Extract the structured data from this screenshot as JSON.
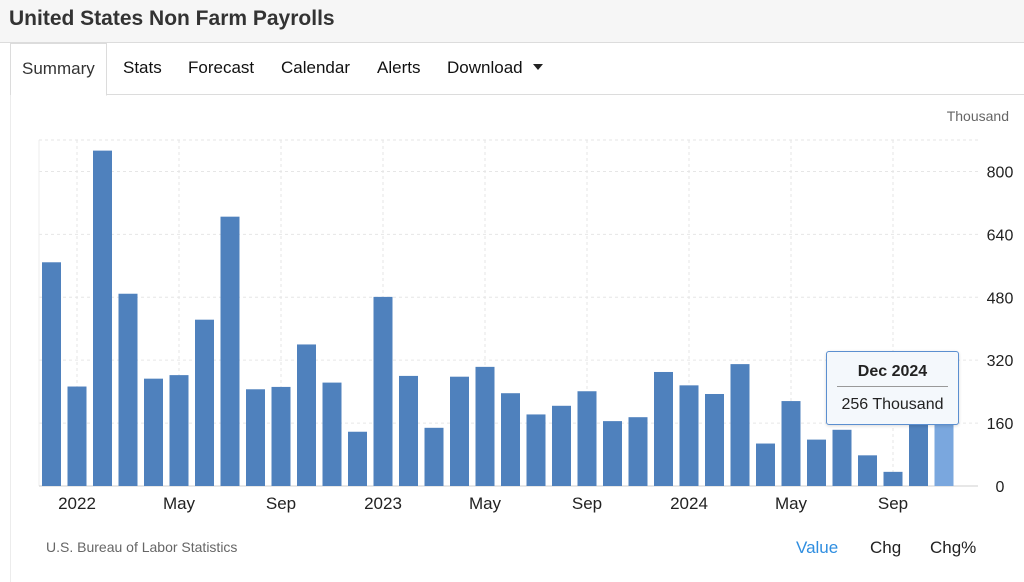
{
  "page": {
    "title": "United States Non Farm Payrolls"
  },
  "tabs": [
    {
      "label": "Summary",
      "active": true
    },
    {
      "label": "Stats"
    },
    {
      "label": "Forecast"
    },
    {
      "label": "Calendar"
    },
    {
      "label": "Alerts"
    },
    {
      "label": "Download",
      "icon": "caret-down-icon"
    }
  ],
  "source": "U.S. Bureau of Labor Statistics",
  "toggles": [
    {
      "label": "Value",
      "active": true
    },
    {
      "label": "Chg"
    },
    {
      "label": "Chg%"
    }
  ],
  "tooltip": {
    "date": "Dec 2024",
    "value": "256 Thousand"
  },
  "colors": {
    "bar": "#4f81bd",
    "bar_highlight": "#7aa7de",
    "active_toggle": "#2f8ee0"
  },
  "chart_data": {
    "type": "bar",
    "unit_label": "Thousand",
    "categories": [
      "Jan 2022",
      "Feb 2022",
      "Mar 2022",
      "Apr 2022",
      "May 2022",
      "Jun 2022",
      "Jul 2022",
      "Aug 2022",
      "Sep 2022",
      "Oct 2022",
      "Nov 2022",
      "Dec 2022",
      "Jan 2023",
      "Feb 2023",
      "Mar 2023",
      "Apr 2023",
      "May 2023",
      "Jun 2023",
      "Jul 2023",
      "Aug 2023",
      "Sep 2023",
      "Oct 2023",
      "Nov 2023",
      "Dec 2023",
      "Jan 2024",
      "Feb 2024",
      "Mar 2024",
      "Apr 2024",
      "May 2024",
      "Jun 2024",
      "Jul 2024",
      "Aug 2024",
      "Sep 2024",
      "Oct 2024",
      "Nov 2024",
      "Dec 2024"
    ],
    "values": [
      569,
      253,
      853,
      489,
      273,
      282,
      423,
      685,
      246,
      252,
      360,
      263,
      138,
      481,
      280,
      148,
      278,
      303,
      236,
      182,
      204,
      241,
      165,
      175,
      290,
      256,
      234,
      310,
      108,
      216,
      118,
      143,
      78,
      36,
      212,
      256
    ],
    "highlight_index": 35,
    "x_tick_labels": [
      {
        "index": 1,
        "label": "2022"
      },
      {
        "index": 5,
        "label": "May"
      },
      {
        "index": 9,
        "label": "Sep"
      },
      {
        "index": 13,
        "label": "2023"
      },
      {
        "index": 17,
        "label": "May"
      },
      {
        "index": 21,
        "label": "Sep"
      },
      {
        "index": 25,
        "label": "2024"
      },
      {
        "index": 29,
        "label": "May"
      },
      {
        "index": 33,
        "label": "Sep"
      }
    ],
    "y_ticks": [
      0,
      160,
      320,
      480,
      640,
      800
    ],
    "ylim": [
      0,
      880
    ],
    "grid": true,
    "y_axis_position": "right"
  }
}
